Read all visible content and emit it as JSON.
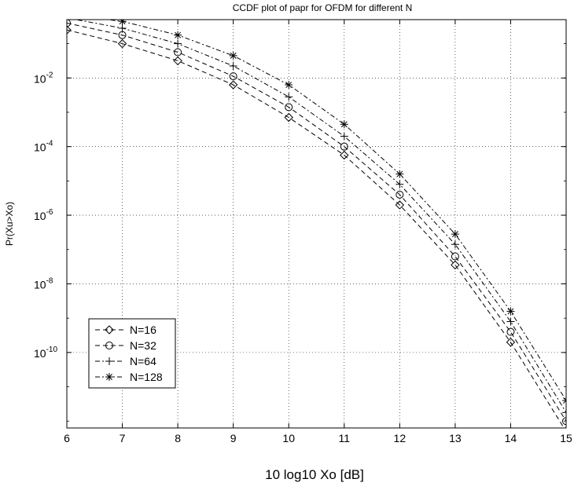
{
  "chart_data": {
    "type": "line",
    "title": "CCDF plot of papr for OFDM for different  N",
    "xlabel": "10  log10 Xo [dB]",
    "ylabel": "Pr(Xu>Xo)",
    "xlim": [
      6,
      15
    ],
    "ylim_log10": [
      -12.2,
      -0.3
    ],
    "yscale": "log",
    "grid": true,
    "legend_position": "bottom-left",
    "x_ticks": [
      "6",
      "7",
      "8",
      "9",
      "10",
      "11",
      "12",
      "13",
      "14",
      "15"
    ],
    "y_ticks": [
      {
        "exp": -2,
        "label": "10",
        "sup": "-2"
      },
      {
        "exp": -4,
        "label": "10",
        "sup": "-4"
      },
      {
        "exp": -6,
        "label": "10",
        "sup": "-6"
      },
      {
        "exp": -8,
        "label": "10",
        "sup": "-8"
      },
      {
        "exp": -10,
        "label": "10",
        "sup": "-10"
      }
    ],
    "x": [
      6,
      7,
      8,
      9,
      10,
      11,
      12,
      13,
      14,
      15
    ],
    "series": [
      {
        "name": "N=16",
        "marker": "diamond",
        "dash": "6,4",
        "log10_values": [
          -0.6,
          -1.0,
          -1.5,
          -2.2,
          -3.15,
          -4.25,
          -5.7,
          -7.45,
          -9.7,
          -12.3
        ]
      },
      {
        "name": "N=32",
        "marker": "circle",
        "dash": "6,4",
        "log10_values": [
          -0.4,
          -0.75,
          -1.25,
          -1.95,
          -2.85,
          -4.0,
          -5.4,
          -7.2,
          -9.4,
          -12.0
        ]
      },
      {
        "name": "N=64",
        "marker": "plus",
        "dash": "6,3,2,3",
        "log10_values": [
          -0.25,
          -0.55,
          -1.0,
          -1.65,
          -2.55,
          -3.7,
          -5.1,
          -6.85,
          -9.1,
          -11.75
        ]
      },
      {
        "name": "N=128",
        "marker": "star",
        "dash": "6,3,2,3",
        "log10_values": [
          -0.15,
          -0.35,
          -0.75,
          -1.35,
          -2.2,
          -3.35,
          -4.8,
          -6.55,
          -8.8,
          -11.4
        ]
      }
    ]
  }
}
